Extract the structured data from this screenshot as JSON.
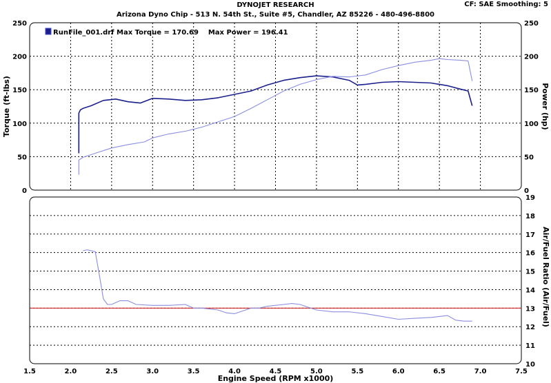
{
  "header": {
    "title": "DYNOJET RESEARCH",
    "subtitle": "Arizona Dyno Chip - 513 N. 54th St., Suite #5, Chandler, AZ 85226 - 480-496-8800",
    "settings": "CF: SAE  Smoothing: 5"
  },
  "colors": {
    "torque": "#1a1f8c",
    "power": "#8a8ee0",
    "afr": "#8a8ee0",
    "reference": "#cc2222",
    "grid": "#000000"
  },
  "chart_data": [
    {
      "type": "line",
      "legend": {
        "label": "RunFile_001.drf Max Torque = 170.69    Max Power = 196.41",
        "position": "top-left"
      },
      "xlabel": "",
      "ylabel": "Torque (ft-lbs)",
      "y2label": "Power (hp)",
      "xlim": [
        1.5,
        7.5
      ],
      "ylim": [
        0,
        250
      ],
      "y2lim": [
        0,
        250
      ],
      "x_ticks": [
        2.0,
        2.5,
        3.0,
        3.5,
        4.0,
        4.5,
        5.0,
        5.5,
        6.0,
        6.5,
        7.0
      ],
      "y_ticks": [
        0,
        50,
        100,
        150,
        200,
        250
      ],
      "y2_ticks": [
        0,
        50,
        100,
        150,
        200,
        250
      ],
      "grid": true,
      "series": [
        {
          "name": "Torque",
          "x": [
            2.1,
            2.1,
            2.12,
            2.15,
            2.25,
            2.4,
            2.55,
            2.7,
            2.85,
            3.0,
            3.2,
            3.4,
            3.6,
            3.8,
            4.0,
            4.2,
            4.4,
            4.6,
            4.8,
            5.0,
            5.2,
            5.4,
            5.5,
            5.6,
            5.8,
            6.0,
            6.2,
            6.4,
            6.6,
            6.75,
            6.85,
            6.9
          ],
          "y": [
            55,
            115,
            120,
            122,
            126,
            134,
            136,
            132,
            130,
            137,
            136,
            134,
            135,
            138,
            143,
            148,
            157,
            164,
            168,
            170.69,
            169,
            164,
            157,
            158,
            161,
            162,
            161,
            160,
            156,
            151,
            148,
            126
          ]
        },
        {
          "name": "Power",
          "x": [
            2.1,
            2.1,
            2.15,
            2.3,
            2.5,
            2.7,
            2.9,
            3.0,
            3.2,
            3.4,
            3.6,
            3.8,
            4.0,
            4.2,
            4.4,
            4.6,
            4.8,
            5.0,
            5.2,
            5.4,
            5.6,
            5.8,
            6.0,
            6.2,
            6.4,
            6.5,
            6.6,
            6.75,
            6.85,
            6.9
          ],
          "y": [
            23,
            45,
            49,
            55,
            63,
            68,
            72,
            78,
            84,
            88,
            94,
            102,
            110,
            122,
            135,
            148,
            158,
            165,
            170,
            169,
            172,
            180,
            186,
            191,
            194,
            196.41,
            195,
            194,
            193,
            163
          ]
        }
      ]
    },
    {
      "type": "line",
      "xlabel": "Engine Speed (RPM x1000)",
      "ylabel": "Air/Fuel Ratio (Air/Fuel)",
      "xlim": [
        1.5,
        7.5
      ],
      "ylim": [
        10,
        19
      ],
      "y_ticks": [
        10,
        11,
        12,
        13,
        14,
        15,
        16,
        17,
        18,
        19
      ],
      "x_ticks": [
        1.5,
        2.0,
        2.5,
        3.0,
        3.5,
        4.0,
        4.5,
        5.0,
        5.5,
        6.0,
        6.5,
        7.0,
        7.5
      ],
      "grid": true,
      "reference_line": 13,
      "series": [
        {
          "name": "Air/Fuel",
          "x": [
            2.15,
            2.2,
            2.3,
            2.35,
            2.4,
            2.45,
            2.5,
            2.6,
            2.7,
            2.8,
            3.0,
            3.2,
            3.4,
            3.5,
            3.6,
            3.8,
            3.9,
            4.0,
            4.1,
            4.2,
            4.3,
            4.4,
            4.6,
            4.7,
            4.8,
            5.0,
            5.2,
            5.4,
            5.6,
            5.8,
            6.0,
            6.2,
            6.4,
            6.5,
            6.6,
            6.7,
            6.8,
            6.9
          ],
          "y": [
            16.1,
            16.15,
            16.05,
            14.8,
            13.5,
            13.2,
            13.2,
            13.4,
            13.4,
            13.2,
            13.15,
            13.15,
            13.2,
            13.0,
            13.0,
            12.9,
            12.75,
            12.7,
            12.85,
            13.0,
            13.0,
            13.1,
            13.2,
            13.25,
            13.2,
            12.9,
            12.8,
            12.8,
            12.7,
            12.55,
            12.4,
            12.45,
            12.5,
            12.55,
            12.6,
            12.35,
            12.3,
            12.3
          ]
        }
      ]
    }
  ]
}
